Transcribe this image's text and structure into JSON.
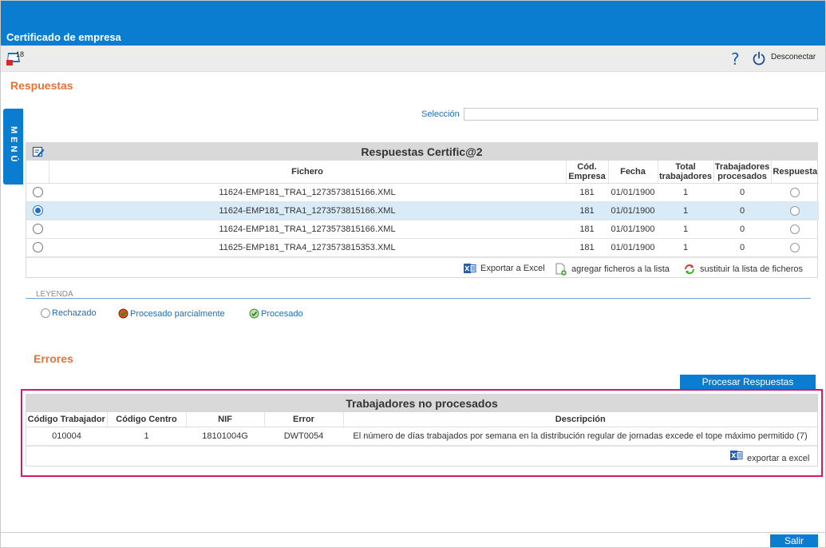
{
  "window": {
    "title": "Certificado de empresa",
    "app_badge": "18"
  },
  "toolbar": {
    "help": "?",
    "logout_label": "Desconectar"
  },
  "menu": {
    "label": "MENÚ"
  },
  "sections": {
    "respuestas": "Respuestas",
    "errores": "Errores"
  },
  "selection": {
    "label": "Selección",
    "value": ""
  },
  "responses": {
    "caption": "Respuestas Certific@2",
    "columns": [
      "Fichero",
      "Cód. Empresa",
      "Fecha",
      "Total trabajadores",
      "Trabajadores procesados",
      "Respuesta"
    ],
    "rows": [
      {
        "selected": false,
        "fichero": "11624-EMP181_TRA1_1273573815166.XML",
        "empresa": "181",
        "fecha": "01/01/1900",
        "total": "1",
        "procesados": "0"
      },
      {
        "selected": true,
        "fichero": "11624-EMP181_TRA1_1273573815166.XML",
        "empresa": "181",
        "fecha": "01/01/1900",
        "total": "1",
        "procesados": "0"
      },
      {
        "selected": false,
        "fichero": "11624-EMP181_TRA1_1273573815166.XML",
        "empresa": "181",
        "fecha": "01/01/1900",
        "total": "1",
        "procesados": "0"
      },
      {
        "selected": false,
        "fichero": "11625-EMP181_TRA4_1273573815353.XML",
        "empresa": "181",
        "fecha": "01/01/1900",
        "total": "1",
        "procesados": "0"
      }
    ],
    "actions": {
      "export": "Exportar a Excel",
      "add": "agregar ficheros a la lista",
      "replace": "sustituir la lista de ficheros"
    }
  },
  "legend": {
    "title": "LEYENDA",
    "items": {
      "rejected": "Rechazado",
      "partial": "Procesado parcialmente",
      "processed": "Procesado"
    }
  },
  "process_button": "Procesar Respuestas",
  "errors": {
    "caption": "Trabajadores no procesados",
    "columns": [
      "Código Trabajador",
      "Código Centro",
      "NIF",
      "Error",
      "Descripción"
    ],
    "rows": [
      {
        "trabajador": "010004",
        "centro": "1",
        "nif": "18101004G",
        "error": "DWT0054",
        "descripcion": "El número de días trabajados por semana en la distribución regular de jornadas excede el tope máximo permitido (7)"
      }
    ],
    "export": "exportar a excel"
  },
  "exit_button": "Salir",
  "colors": {
    "brand": "#0b7dd1",
    "section_title": "#e2733a",
    "highlight_border": "#d3196a",
    "selected_row": "#d9ebf7"
  }
}
